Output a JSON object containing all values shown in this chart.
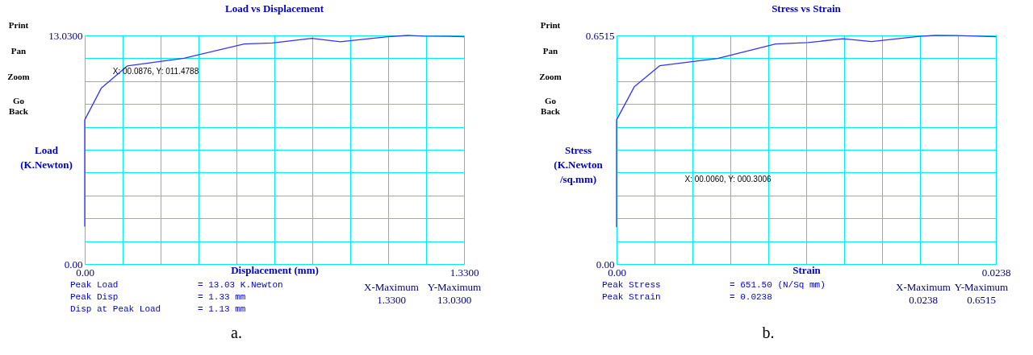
{
  "chart_data": [
    {
      "type": "line",
      "title": "Load vs Displacement",
      "xlabel": "Displacement (mm)",
      "ylabel": "Load\n(K.Newton)",
      "x": [
        0,
        0,
        0.0586,
        0.149,
        0.348,
        0.559,
        0.658,
        0.796,
        0.896,
        1.062,
        1.134,
        1.189,
        1.277,
        1.33
      ],
      "series": [
        {
          "color": "#3333ff",
          "values": [
            2.13,
            8.22,
            10.04,
            11.29,
            11.73,
            12.54,
            12.6,
            12.86,
            12.67,
            12.96,
            13.03,
            12.99,
            12.98,
            12.96
          ]
        }
      ],
      "xlim": [
        0,
        1.33
      ],
      "ylim": [
        0,
        13.03
      ],
      "xticks": [
        {
          "value": 0,
          "label": "0.00"
        },
        {
          "value": 0.133,
          "label": null
        },
        {
          "value": 0.266,
          "label": null
        },
        {
          "value": 0.399,
          "label": null
        },
        {
          "value": 0.532,
          "label": null
        },
        {
          "value": 0.665,
          "label": null
        },
        {
          "value": 0.798,
          "label": null
        },
        {
          "value": 0.931,
          "label": null
        },
        {
          "value": 1.064,
          "label": null
        },
        {
          "value": 1.197,
          "label": null
        },
        {
          "value": 1.33,
          "label": "1.3300"
        }
      ],
      "yticks": [
        {
          "value": 0,
          "label": "0.00"
        },
        {
          "value": 1.303,
          "label": null
        },
        {
          "value": 2.606,
          "label": null
        },
        {
          "value": 3.909,
          "label": null
        },
        {
          "value": 5.212,
          "label": null
        },
        {
          "value": 6.515,
          "label": null
        },
        {
          "value": 7.818,
          "label": null
        },
        {
          "value": 9.121,
          "label": null
        },
        {
          "value": 10.424,
          "label": null
        },
        {
          "value": 11.727,
          "label": null
        },
        {
          "value": 13.03,
          "label": "13.0300"
        }
      ],
      "grid": true,
      "marker": "none",
      "line_style": "solid",
      "annotations": [
        "Print",
        "Pan",
        "Zoom",
        "Go\nBack",
        "X: 00.0876,  Y: 011.4788",
        "Peak Load",
        "= 13.03 K.Newton",
        "Peak Disp",
        "= 1.33 mm",
        "Disp at Peak Load",
        "= 1.13 mm",
        "X-Maximum",
        "1.3300",
        "Y-Maximum",
        "13.0300",
        "a."
      ]
    },
    {
      "type": "line",
      "title": "Stress vs Strain",
      "xlabel": "Strain",
      "ylabel": "Stress\n(K.Newton\n/sq.mm)",
      "x": [
        0,
        0,
        0.00111,
        0.0027,
        0.00634,
        0.00997,
        0.012,
        0.0142,
        0.016,
        0.019,
        0.02,
        0.0213,
        0.0238
      ],
      "series": [
        {
          "color": "#3333ff",
          "values": [
            0.105,
            0.411,
            0.505,
            0.565,
            0.586,
            0.627,
            0.631,
            0.642,
            0.634,
            0.649,
            0.6515,
            0.651,
            0.648
          ]
        }
      ],
      "xlim": [
        0,
        0.0238
      ],
      "ylim": [
        0,
        0.6515
      ],
      "xticks": [
        {
          "value": 0,
          "label": "0.00"
        },
        {
          "value": 0.00238,
          "label": null
        },
        {
          "value": 0.00476,
          "label": null
        },
        {
          "value": 0.00714,
          "label": null
        },
        {
          "value": 0.00952,
          "label": null
        },
        {
          "value": 0.0119,
          "label": null
        },
        {
          "value": 0.01428,
          "label": null
        },
        {
          "value": 0.01666,
          "label": null
        },
        {
          "value": 0.01904,
          "label": null
        },
        {
          "value": 0.02142,
          "label": null
        },
        {
          "value": 0.0238,
          "label": "0.0238"
        }
      ],
      "yticks": [
        {
          "value": 0,
          "label": "0.00"
        },
        {
          "value": 0.06515,
          "label": null
        },
        {
          "value": 0.1303,
          "label": null
        },
        {
          "value": 0.19545,
          "label": null
        },
        {
          "value": 0.2606,
          "label": null
        },
        {
          "value": 0.32575,
          "label": null
        },
        {
          "value": 0.3909,
          "label": null
        },
        {
          "value": 0.45605,
          "label": null
        },
        {
          "value": 0.5212,
          "label": null
        },
        {
          "value": 0.58635,
          "label": null
        },
        {
          "value": 0.6515,
          "label": "0.6515"
        }
      ],
      "grid": true,
      "marker": "none",
      "line_style": "solid",
      "annotations": [
        "Print",
        "Pan",
        "Zoom",
        "Go\nBack",
        "X: 00.0060,  Y: 000.3006",
        "Peak Stress",
        "= 651.50 (N/Sq mm)",
        "Peak Strain",
        "= 0.0238",
        "X-Maximum",
        "0.0238",
        "Y-Maximum",
        "0.6515",
        "b."
      ]
    }
  ]
}
